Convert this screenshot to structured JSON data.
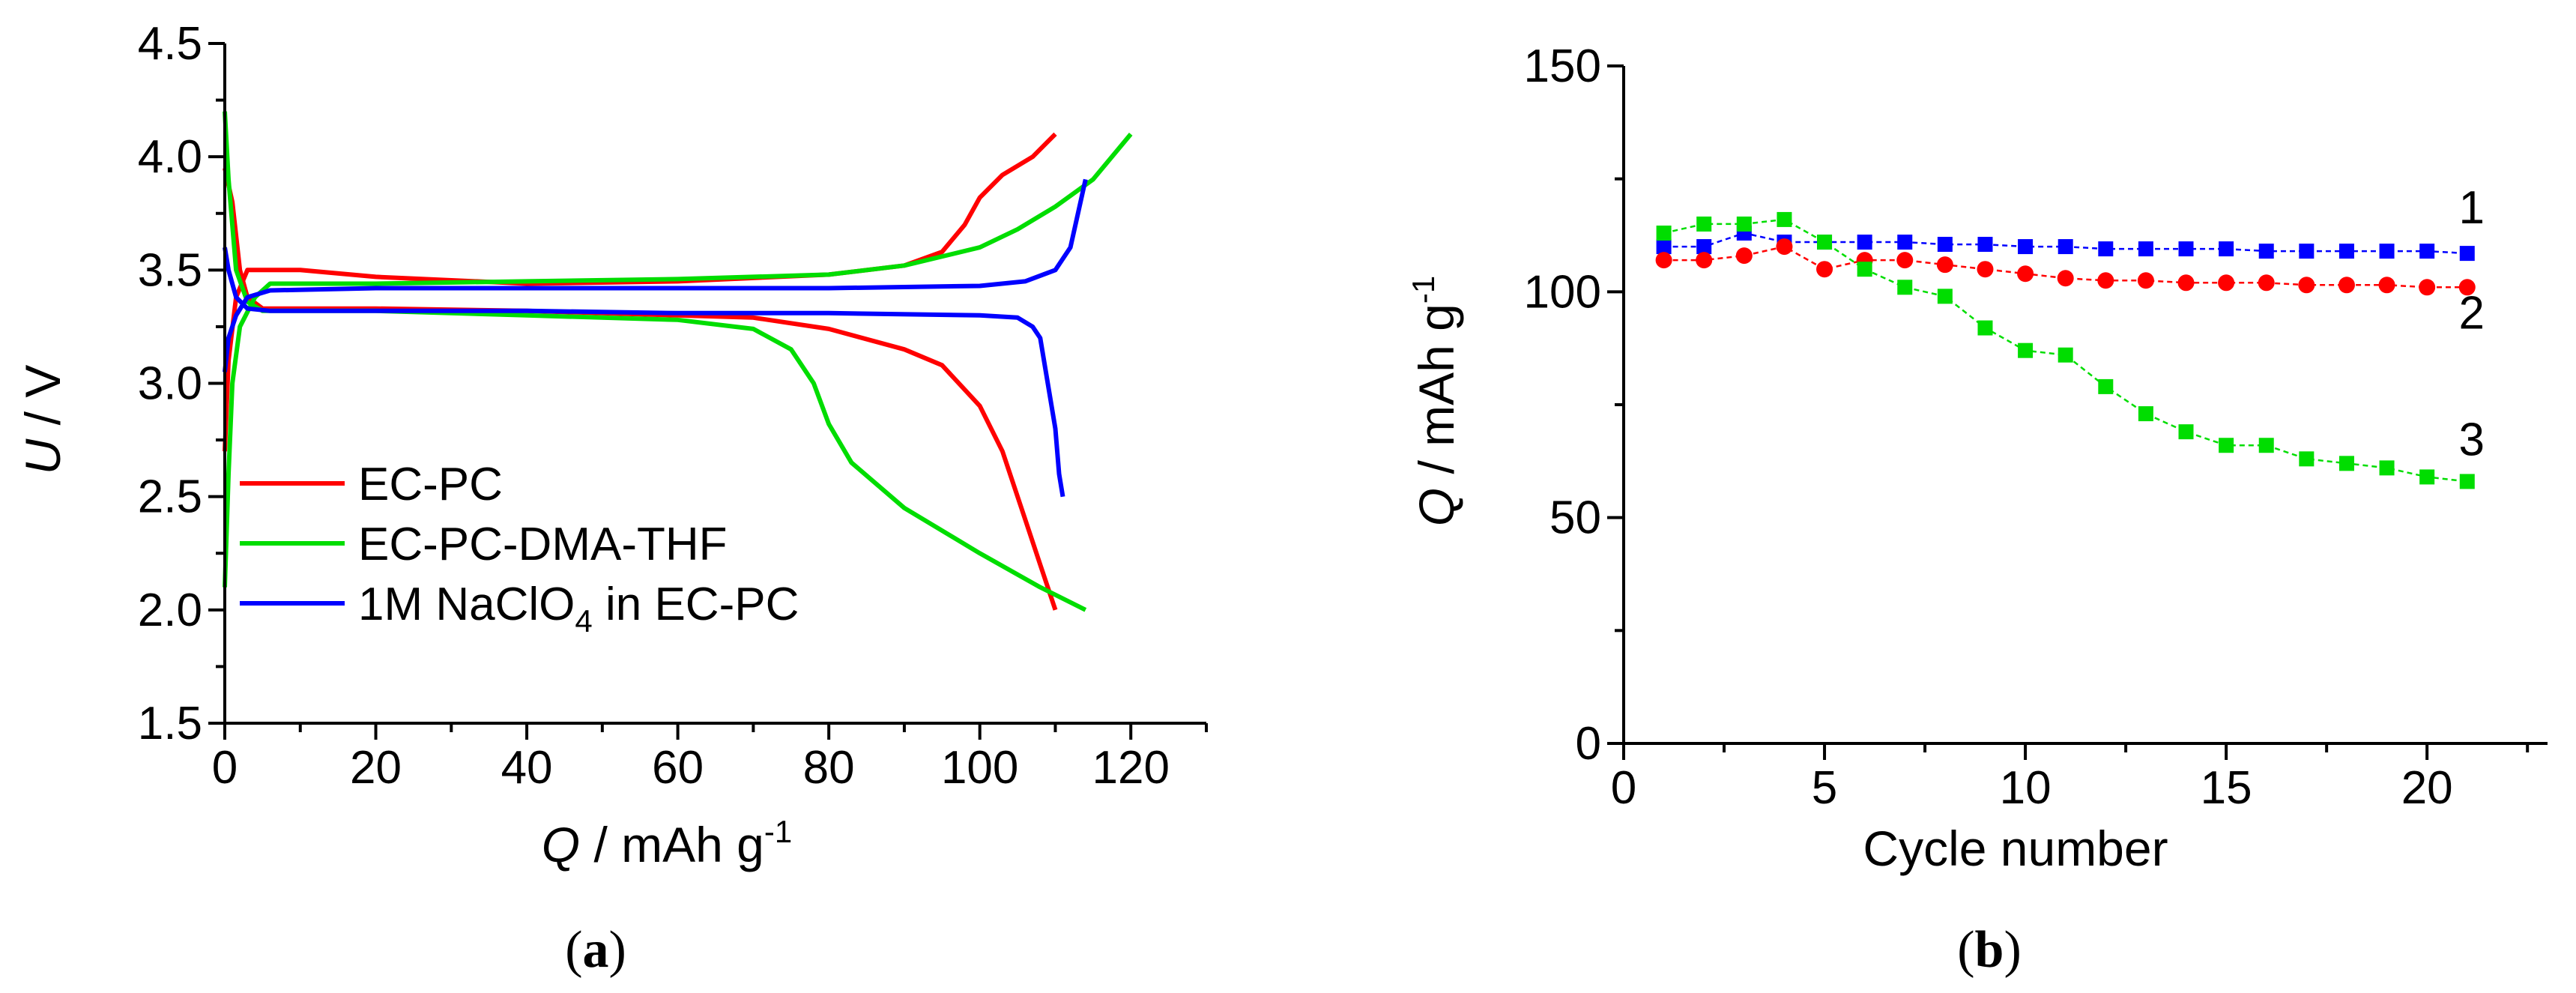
{
  "chart_data": [
    {
      "panel": "a",
      "type": "line",
      "panel_label": "a",
      "xlabel_italic": "Q",
      "xlabel_rest": " / mAh g",
      "xlabel_sup": "-1",
      "ylabel_italic": "U",
      "ylabel_rest": " / V",
      "xlim": [
        0,
        130
      ],
      "ylim": [
        1.5,
        4.5
      ],
      "xticks": [
        "0",
        "20",
        "40",
        "60",
        "80",
        "100",
        "120"
      ],
      "yticks": [
        "1.5",
        "2.0",
        "2.5",
        "3.0",
        "3.5",
        "4.0",
        "4.5"
      ],
      "legend_position": "bottom-left",
      "series": [
        {
          "name": "EC-PC",
          "legend_pre": "EC-PC",
          "legend_sub": "",
          "legend_post": "",
          "color": "#ff0000",
          "charge": [
            [
              0,
              2.7
            ],
            [
              0.5,
              3.1
            ],
            [
              1.5,
              3.38
            ],
            [
              3,
              3.5
            ],
            [
              10,
              3.5
            ],
            [
              20,
              3.47
            ],
            [
              40,
              3.44
            ],
            [
              60,
              3.45
            ],
            [
              80,
              3.48
            ],
            [
              90,
              3.52
            ],
            [
              95,
              3.58
            ],
            [
              98,
              3.7
            ],
            [
              100,
              3.82
            ],
            [
              103,
              3.92
            ],
            [
              107,
              4.0
            ],
            [
              110,
              4.1
            ]
          ],
          "discharge": [
            [
              0,
              3.95
            ],
            [
              1,
              3.8
            ],
            [
              2,
              3.5
            ],
            [
              3,
              3.38
            ],
            [
              5,
              3.33
            ],
            [
              20,
              3.33
            ],
            [
              40,
              3.32
            ],
            [
              60,
              3.3
            ],
            [
              70,
              3.29
            ],
            [
              80,
              3.24
            ],
            [
              90,
              3.15
            ],
            [
              95,
              3.08
            ],
            [
              100,
              2.9
            ],
            [
              103,
              2.7
            ],
            [
              106,
              2.4
            ],
            [
              108,
              2.2
            ],
            [
              110,
              2.0
            ]
          ]
        },
        {
          "name": "EC-PC-DMA-THF",
          "legend_pre": "EC-PC-DMA-THF",
          "legend_sub": "",
          "legend_post": "",
          "color": "#00dd00",
          "charge": [
            [
              0,
              2.1
            ],
            [
              0.5,
              2.6
            ],
            [
              1,
              3.0
            ],
            [
              2,
              3.25
            ],
            [
              4,
              3.38
            ],
            [
              6,
              3.44
            ],
            [
              20,
              3.44
            ],
            [
              40,
              3.45
            ],
            [
              60,
              3.46
            ],
            [
              80,
              3.48
            ],
            [
              90,
              3.52
            ],
            [
              100,
              3.6
            ],
            [
              105,
              3.68
            ],
            [
              110,
              3.78
            ],
            [
              115,
              3.9
            ],
            [
              120,
              4.1
            ]
          ],
          "discharge": [
            [
              0,
              4.2
            ],
            [
              0.5,
              3.9
            ],
            [
              1.5,
              3.5
            ],
            [
              3,
              3.36
            ],
            [
              5,
              3.32
            ],
            [
              20,
              3.32
            ],
            [
              40,
              3.3
            ],
            [
              60,
              3.28
            ],
            [
              70,
              3.24
            ],
            [
              75,
              3.15
            ],
            [
              78,
              3.0
            ],
            [
              80,
              2.82
            ],
            [
              83,
              2.65
            ],
            [
              90,
              2.45
            ],
            [
              100,
              2.25
            ],
            [
              108,
              2.1
            ],
            [
              114,
              2.0
            ]
          ]
        },
        {
          "name": "1M NaClO4 in EC-PC",
          "legend_pre": "1M NaClO",
          "legend_sub": "4",
          "legend_post": " in EC-PC",
          "color": "#0000ff",
          "charge": [
            [
              0,
              3.05
            ],
            [
              0.5,
              3.2
            ],
            [
              1.5,
              3.3
            ],
            [
              3,
              3.38
            ],
            [
              6,
              3.41
            ],
            [
              20,
              3.42
            ],
            [
              40,
              3.42
            ],
            [
              60,
              3.42
            ],
            [
              80,
              3.42
            ],
            [
              100,
              3.43
            ],
            [
              106,
              3.45
            ],
            [
              110,
              3.5
            ],
            [
              112,
              3.6
            ],
            [
              113,
              3.75
            ],
            [
              114,
              3.9
            ]
          ],
          "discharge": [
            [
              0,
              3.6
            ],
            [
              0.5,
              3.5
            ],
            [
              1.5,
              3.38
            ],
            [
              3,
              3.33
            ],
            [
              6,
              3.32
            ],
            [
              20,
              3.32
            ],
            [
              40,
              3.32
            ],
            [
              60,
              3.31
            ],
            [
              80,
              3.31
            ],
            [
              100,
              3.3
            ],
            [
              105,
              3.29
            ],
            [
              107,
              3.25
            ],
            [
              108,
              3.2
            ],
            [
              109,
              3.0
            ],
            [
              110,
              2.8
            ],
            [
              110.5,
              2.6
            ],
            [
              111,
              2.5
            ]
          ]
        }
      ]
    },
    {
      "panel": "b",
      "type": "scatter",
      "panel_label": "b",
      "xlabel": "Cycle number",
      "ylabel_italic": "Q",
      "ylabel_rest": " / mAh g",
      "ylabel_sup": "-1",
      "xlim": [
        0,
        23
      ],
      "ylim": [
        0,
        150
      ],
      "xticks": [
        "0",
        "5",
        "10",
        "15",
        "20"
      ],
      "yticks": [
        "0",
        "50",
        "100",
        "150"
      ],
      "x": [
        1,
        2,
        3,
        4,
        5,
        6,
        7,
        8,
        9,
        10,
        11,
        12,
        13,
        14,
        15,
        16,
        17,
        18,
        19,
        20,
        21
      ],
      "series": [
        {
          "name": "1",
          "color": "#0000ff",
          "marker": "square",
          "values": [
            110,
            110,
            113,
            111,
            111,
            111,
            111,
            110.5,
            110.5,
            110,
            110,
            109.5,
            109.5,
            109.5,
            109.5,
            109,
            109,
            109,
            109,
            109,
            108.5
          ]
        },
        {
          "name": "2",
          "color": "#ff0000",
          "marker": "circle",
          "values": [
            107,
            107,
            108,
            110,
            105,
            107,
            107,
            106,
            105,
            104,
            103,
            102.5,
            102.5,
            102,
            102,
            102,
            101.5,
            101.5,
            101.5,
            101,
            101
          ]
        },
        {
          "name": "3",
          "color": "#00dd00",
          "marker": "square",
          "values": [
            113,
            115,
            115,
            116,
            111,
            105,
            101,
            99,
            92,
            87,
            86,
            79,
            73,
            69,
            66,
            66,
            63,
            62,
            61,
            59,
            58
          ]
        }
      ]
    }
  ]
}
